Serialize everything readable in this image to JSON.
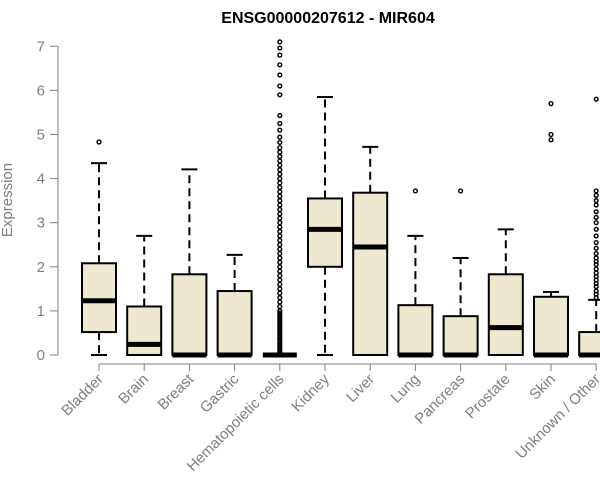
{
  "chart_data": {
    "type": "boxplot",
    "title": "ENSG00000207612 - MIR604",
    "xlabel": "",
    "ylabel": "Expression",
    "ylim": [
      0,
      7
    ],
    "yticks": [
      "0",
      "1",
      "2",
      "3",
      "4",
      "5",
      "6",
      "7"
    ],
    "grid": false,
    "colors": {
      "box_fill": "#ede8cf",
      "stroke": "#000000",
      "axis": "#7f7f7f",
      "tick_label": "#7f7f7f"
    },
    "categories": [
      "Bladder",
      "Brain",
      "Breast",
      "Gastric",
      "Hematopoietic cells",
      "Kidney",
      "Liver",
      "Lung",
      "Pancreas",
      "Prostate",
      "Skin",
      "Unknown / Other"
    ],
    "boxes": [
      {
        "category": "Bladder",
        "whisker_low": 0,
        "q1": 0.52,
        "median": 1.23,
        "q3": 2.08,
        "whisker_high": 4.35,
        "outliers": [
          4.83
        ]
      },
      {
        "category": "Brain",
        "whisker_low": 0,
        "q1": 0,
        "median": 0.24,
        "q3": 1.1,
        "whisker_high": 2.7,
        "outliers": []
      },
      {
        "category": "Breast",
        "whisker_low": 0,
        "q1": 0,
        "median": 0,
        "q3": 1.83,
        "whisker_high": 4.21,
        "outliers": []
      },
      {
        "category": "Gastric",
        "whisker_low": 0,
        "q1": 0,
        "median": 0,
        "q3": 1.45,
        "whisker_high": 2.27,
        "outliers": []
      },
      {
        "category": "Hematopoietic cells",
        "whisker_low": 0,
        "q1": 0,
        "median": 0,
        "q3": 0,
        "whisker_high": 0,
        "outliers": [
          0.05,
          0.1,
          0.15,
          0.2,
          0.25,
          0.3,
          0.35,
          0.4,
          0.45,
          0.5,
          0.55,
          0.6,
          0.65,
          0.7,
          0.75,
          0.8,
          0.85,
          0.9,
          0.95,
          1.0,
          1.1,
          1.2,
          1.3,
          1.4,
          1.5,
          1.6,
          1.7,
          1.8,
          1.9,
          2.0,
          2.1,
          2.2,
          2.3,
          2.4,
          2.5,
          2.6,
          2.7,
          2.8,
          2.9,
          3.0,
          3.1,
          3.2,
          3.3,
          3.4,
          3.5,
          3.6,
          3.7,
          3.8,
          3.9,
          4.0,
          4.1,
          4.2,
          4.3,
          4.4,
          4.5,
          4.6,
          4.7,
          4.82,
          4.94,
          5.1,
          5.25,
          5.43,
          5.9,
          6.1,
          6.35,
          6.58,
          6.8,
          6.96,
          7.1
        ]
      },
      {
        "category": "Kidney",
        "whisker_low": 0,
        "q1": 2.0,
        "median": 2.85,
        "q3": 3.55,
        "whisker_high": 5.85,
        "outliers": []
      },
      {
        "category": "Liver",
        "whisker_low": 0,
        "q1": 0,
        "median": 2.45,
        "q3": 3.68,
        "whisker_high": 4.72,
        "outliers": []
      },
      {
        "category": "Lung",
        "whisker_low": 0,
        "q1": 0,
        "median": 0,
        "q3": 1.13,
        "whisker_high": 2.7,
        "outliers": [
          3.72
        ]
      },
      {
        "category": "Pancreas",
        "whisker_low": 0,
        "q1": 0,
        "median": 0,
        "q3": 0.88,
        "whisker_high": 2.2,
        "outliers": [
          3.72
        ]
      },
      {
        "category": "Prostate",
        "whisker_low": 0,
        "q1": 0,
        "median": 0.62,
        "q3": 1.83,
        "whisker_high": 2.85,
        "outliers": []
      },
      {
        "category": "Skin",
        "whisker_low": 0,
        "q1": 0,
        "median": 0,
        "q3": 1.32,
        "whisker_high": 1.43,
        "outliers": [
          4.88,
          5.0,
          5.7
        ]
      },
      {
        "category": "Unknown / Other",
        "whisker_low": 0,
        "q1": 0,
        "median": 0,
        "q3": 0.52,
        "whisker_high": 1.25,
        "outliers": [
          1.3,
          1.38,
          1.45,
          1.55,
          1.62,
          1.7,
          1.78,
          1.86,
          1.95,
          2.05,
          2.12,
          2.2,
          2.3,
          2.42,
          2.55,
          2.7,
          2.85,
          3.0,
          3.12,
          3.25,
          3.4,
          3.5,
          3.62,
          3.72,
          5.8
        ]
      }
    ]
  }
}
